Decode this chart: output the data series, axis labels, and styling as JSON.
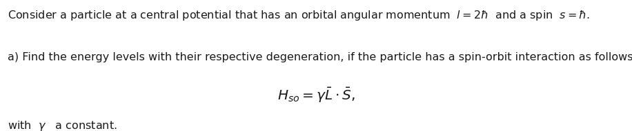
{
  "background_color": "#ffffff",
  "line1": "Consider a particle at a central potential that has an orbital angular momentum  $l = 2\\hbar$  and a spin  $s = \\hbar$.",
  "line2": "a) Find the energy levels with their respective degeneration, if the particle has a spin-orbit interaction as follows",
  "line3_math": "$H_{so} = \\gamma\\bar{L}\\cdot\\bar{S},$",
  "line4": "with  $\\gamma$   a constant.",
  "text_color": "#1a1a1a",
  "font_size_body": 11.5,
  "font_size_eq": 14.5,
  "fig_width": 9.16,
  "fig_height": 1.91,
  "dpi": 100
}
